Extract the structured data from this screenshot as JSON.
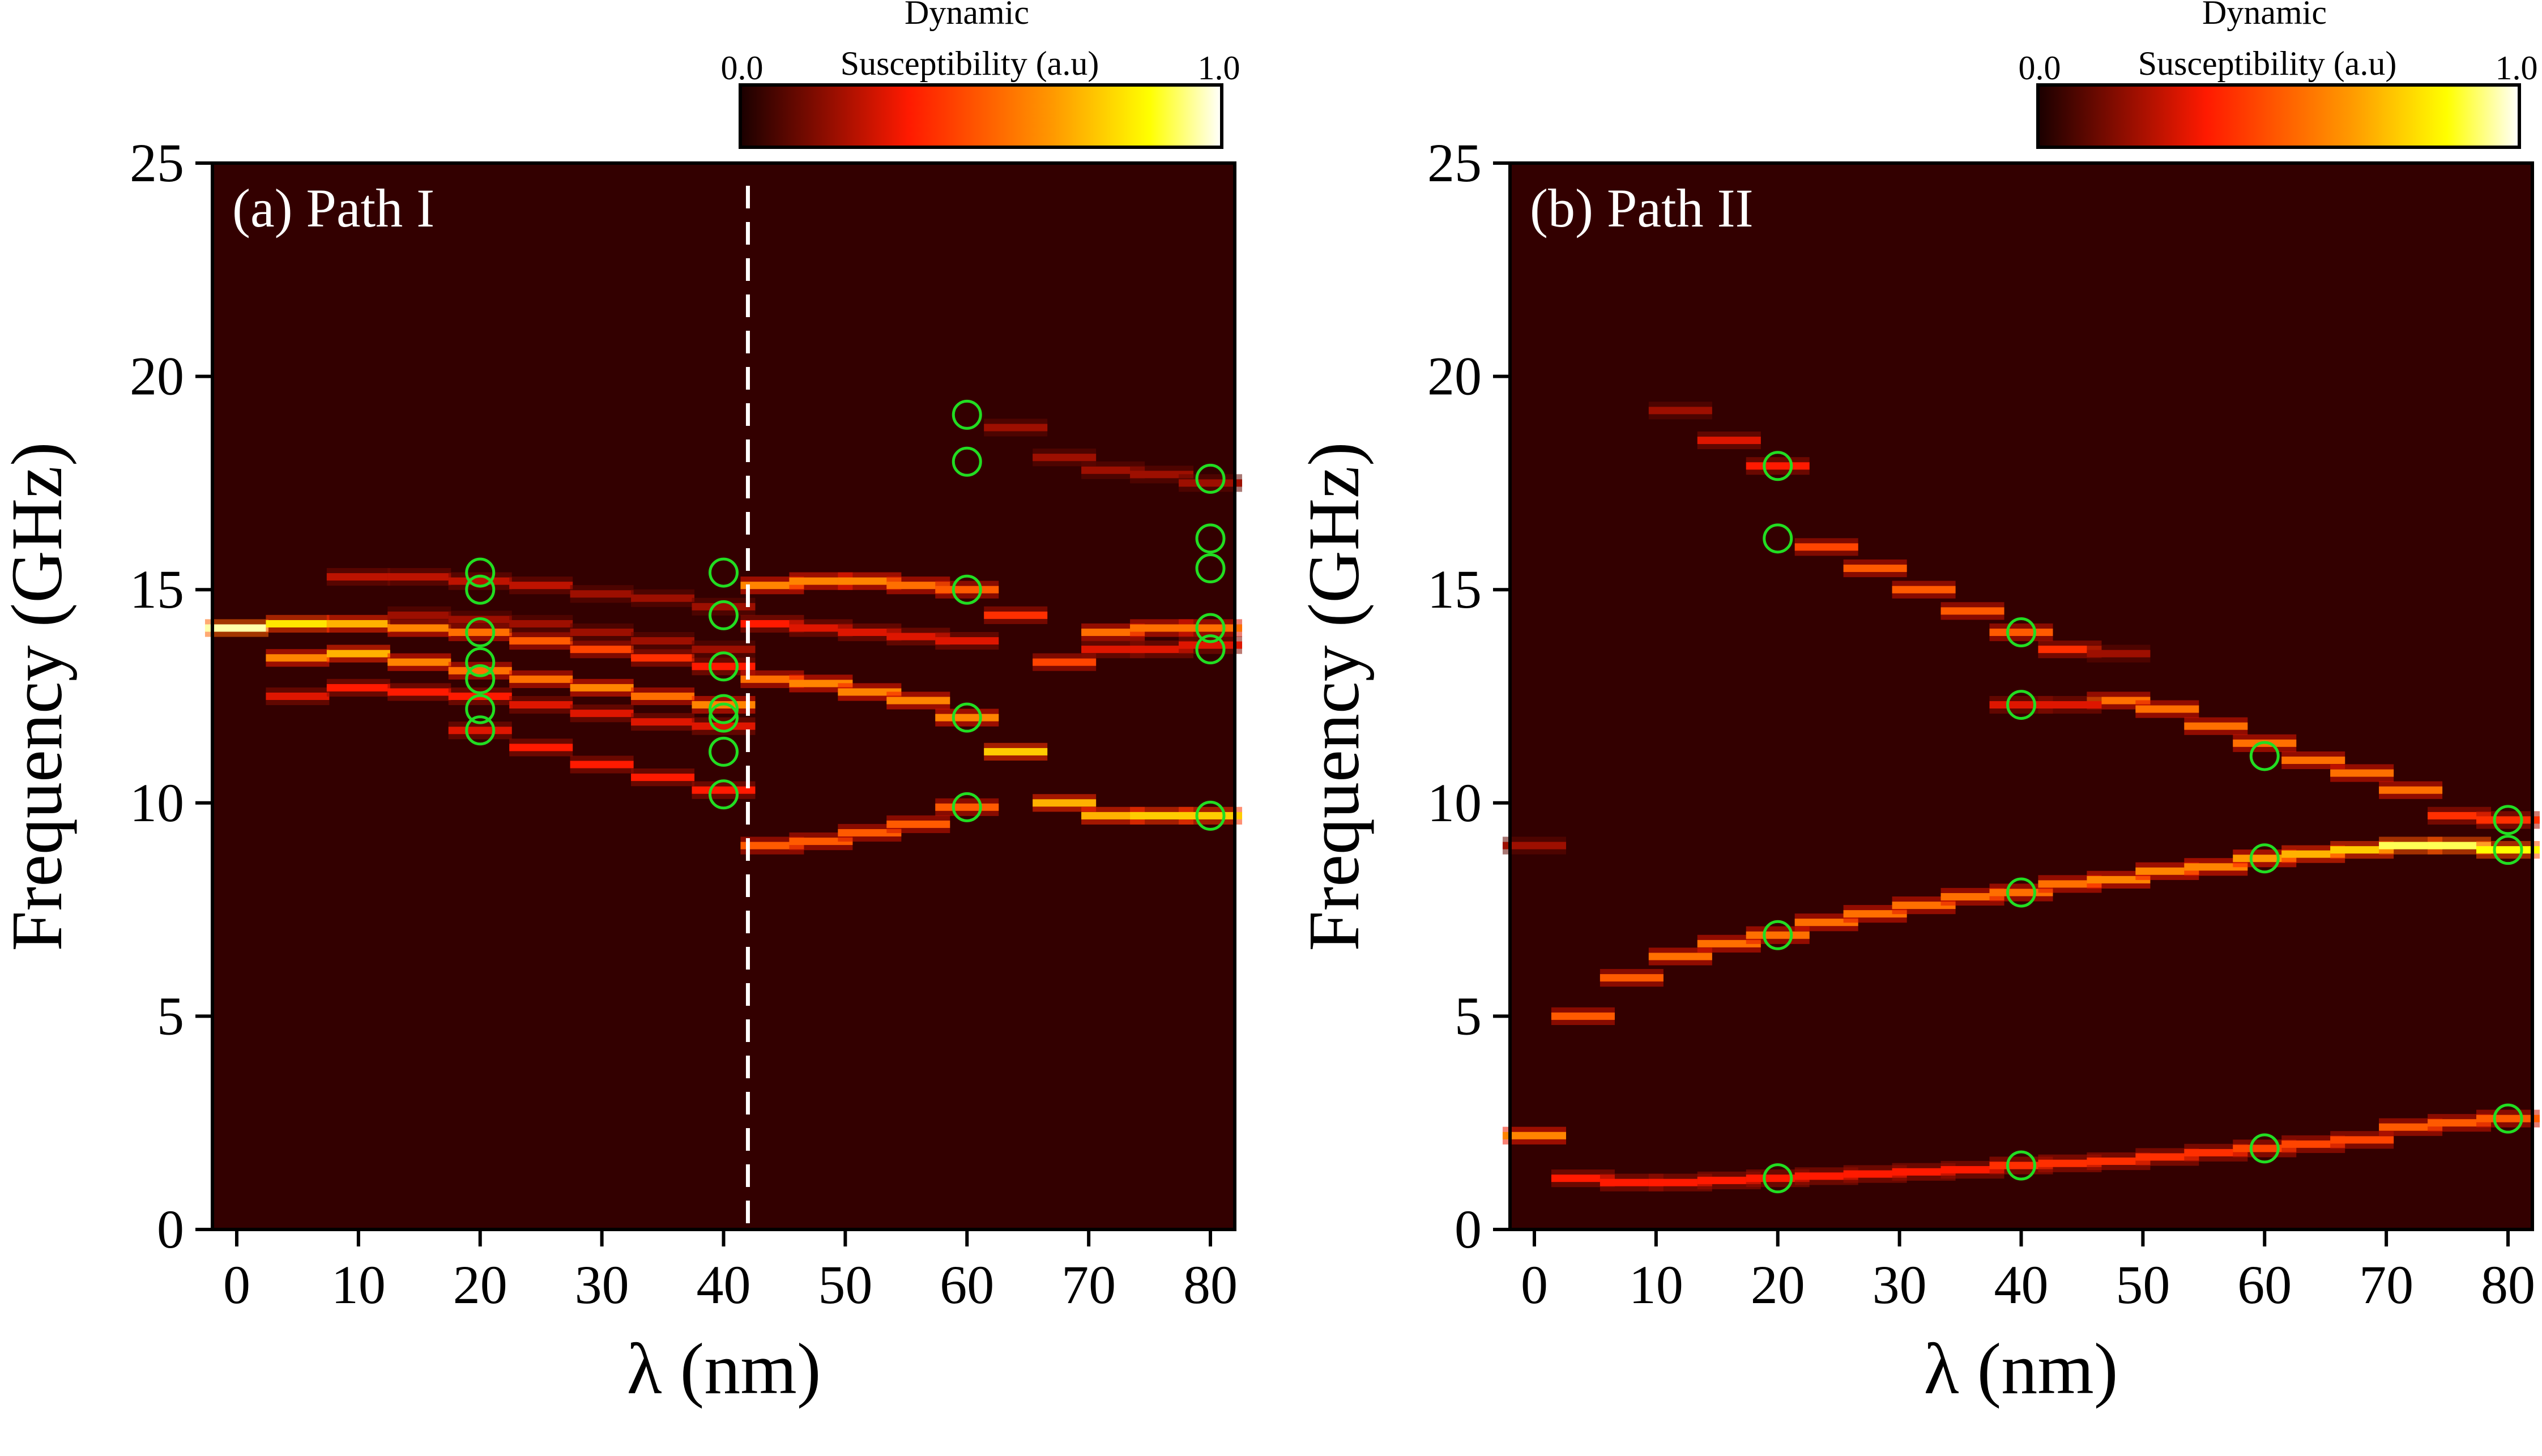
{
  "chart_data": [
    {
      "type": "heatmap",
      "title": "",
      "panel_label": "(a) Path I",
      "xlabel": "λ (nm)",
      "ylabel": "Frequency (GHz)",
      "xlim": [
        -2,
        82
      ],
      "ylim": [
        0,
        25
      ],
      "xticks": [
        0,
        10,
        20,
        30,
        40,
        50,
        60,
        70,
        80
      ],
      "yticks": [
        0,
        5,
        10,
        15,
        20,
        25
      ],
      "grid": false,
      "background_color": "#330000",
      "colorbar": {
        "title_line1": "Dynamic",
        "title_line2": "Susceptibility (a.u)",
        "min_label": "0.0",
        "max_label": "1.0",
        "colormap": "hot",
        "placement": "top-right"
      },
      "divider_x": 42,
      "modes": [
        {
          "x": [
            0,
            5,
            10,
            15,
            20,
            25,
            30,
            35,
            40
          ],
          "y": [
            14.1,
            14.2,
            14.2,
            14.1,
            14.0,
            13.8,
            13.6,
            13.4,
            13.2
          ],
          "intensity": [
            0.95,
            0.8,
            0.7,
            0.6,
            0.55,
            0.5,
            0.45,
            0.4,
            0.35
          ]
        },
        {
          "x": [
            5,
            10,
            15,
            20,
            25,
            30,
            35,
            40
          ],
          "y": [
            13.4,
            13.5,
            13.3,
            13.1,
            12.9,
            12.7,
            12.5,
            12.3
          ],
          "intensity": [
            0.6,
            0.7,
            0.6,
            0.55,
            0.55,
            0.6,
            0.55,
            0.6
          ]
        },
        {
          "x": [
            5,
            10,
            15,
            20,
            25,
            30,
            35,
            40
          ],
          "y": [
            12.5,
            12.7,
            12.6,
            12.5,
            12.3,
            12.1,
            11.9,
            11.8
          ],
          "intensity": [
            0.3,
            0.35,
            0.35,
            0.35,
            0.3,
            0.3,
            0.3,
            0.3
          ]
        },
        {
          "x": [
            10,
            15,
            20,
            25,
            30,
            35,
            40
          ],
          "y": [
            15.3,
            15.3,
            15.2,
            15.1,
            14.9,
            14.8,
            14.6
          ],
          "intensity": [
            0.25,
            0.25,
            0.25,
            0.25,
            0.2,
            0.2,
            0.2
          ]
        },
        {
          "x": [
            15,
            20,
            25,
            30,
            35,
            40
          ],
          "y": [
            14.4,
            14.3,
            14.2,
            14.0,
            13.8,
            13.6
          ],
          "intensity": [
            0.2,
            0.2,
            0.2,
            0.2,
            0.2,
            0.2
          ]
        },
        {
          "x": [
            20,
            25,
            30,
            35,
            40
          ],
          "y": [
            11.7,
            11.3,
            10.9,
            10.6,
            10.3
          ],
          "intensity": [
            0.3,
            0.35,
            0.35,
            0.35,
            0.35
          ]
        },
        {
          "x": [
            44,
            48,
            52,
            56,
            60
          ],
          "y": [
            15.1,
            15.2,
            15.2,
            15.1,
            15.0
          ],
          "intensity": [
            0.6,
            0.6,
            0.6,
            0.55,
            0.5
          ]
        },
        {
          "x": [
            44,
            48,
            52,
            56,
            60
          ],
          "y": [
            14.2,
            14.1,
            14.0,
            13.9,
            13.8
          ],
          "intensity": [
            0.35,
            0.3,
            0.3,
            0.3,
            0.3
          ]
        },
        {
          "x": [
            44,
            48,
            52,
            56,
            60
          ],
          "y": [
            12.9,
            12.8,
            12.6,
            12.4,
            12.0
          ],
          "intensity": [
            0.55,
            0.6,
            0.6,
            0.6,
            0.6
          ]
        },
        {
          "x": [
            44,
            48,
            52,
            56,
            60
          ],
          "y": [
            9.0,
            9.1,
            9.3,
            9.5,
            9.9
          ],
          "intensity": [
            0.5,
            0.5,
            0.5,
            0.5,
            0.5
          ]
        },
        {
          "x": [
            64,
            68,
            72,
            76,
            80
          ],
          "y": [
            18.8,
            18.1,
            17.8,
            17.7,
            17.5
          ],
          "intensity": [
            0.2,
            0.2,
            0.2,
            0.2,
            0.2
          ]
        },
        {
          "x": [
            64,
            68,
            72,
            76,
            80
          ],
          "y": [
            14.4,
            13.3,
            14.0,
            14.1,
            14.1
          ],
          "intensity": [
            0.4,
            0.45,
            0.55,
            0.55,
            0.55
          ]
        },
        {
          "x": [
            64,
            68,
            72,
            76,
            80
          ],
          "y": [
            11.2,
            10.0,
            9.7,
            9.7,
            9.7
          ],
          "intensity": [
            0.75,
            0.7,
            0.7,
            0.75,
            0.75
          ]
        },
        {
          "x": [
            72,
            76,
            80
          ],
          "y": [
            13.6,
            13.6,
            13.7
          ],
          "intensity": [
            0.3,
            0.3,
            0.3
          ]
        }
      ],
      "markers": [
        {
          "x": 20,
          "y": 15.4
        },
        {
          "x": 20,
          "y": 15.0
        },
        {
          "x": 20,
          "y": 14.0
        },
        {
          "x": 20,
          "y": 13.3
        },
        {
          "x": 20,
          "y": 12.9
        },
        {
          "x": 20,
          "y": 12.2
        },
        {
          "x": 20,
          "y": 11.7
        },
        {
          "x": 40,
          "y": 15.4
        },
        {
          "x": 40,
          "y": 14.4
        },
        {
          "x": 40,
          "y": 13.2
        },
        {
          "x": 40,
          "y": 12.2
        },
        {
          "x": 40,
          "y": 12.0
        },
        {
          "x": 40,
          "y": 11.2
        },
        {
          "x": 40,
          "y": 10.2
        },
        {
          "x": 60,
          "y": 19.1
        },
        {
          "x": 60,
          "y": 18.0
        },
        {
          "x": 60,
          "y": 15.0
        },
        {
          "x": 60,
          "y": 12.0
        },
        {
          "x": 60,
          "y": 9.9
        },
        {
          "x": 80,
          "y": 17.6
        },
        {
          "x": 80,
          "y": 16.2
        },
        {
          "x": 80,
          "y": 15.5
        },
        {
          "x": 80,
          "y": 14.1
        },
        {
          "x": 80,
          "y": 13.6
        },
        {
          "x": 80,
          "y": 9.7
        }
      ]
    },
    {
      "type": "heatmap",
      "title": "",
      "panel_label": "(b) Path II",
      "xlabel": "λ (nm)",
      "ylabel": "Frequency (GHz)",
      "xlim": [
        -2,
        82
      ],
      "ylim": [
        0,
        25
      ],
      "xticks": [
        0,
        10,
        20,
        30,
        40,
        50,
        60,
        70,
        80
      ],
      "yticks": [
        0,
        5,
        10,
        15,
        20,
        25
      ],
      "grid": false,
      "background_color": "#330000",
      "colorbar": {
        "title_line1": "Dynamic",
        "title_line2": "Susceptibility (a.u)",
        "min_label": "0.0",
        "max_label": "1.0",
        "colormap": "hot",
        "placement": "top-right"
      },
      "modes": [
        {
          "x": [
            0
          ],
          "y": [
            2.2
          ],
          "intensity": [
            0.6
          ]
        },
        {
          "x": [
            0
          ],
          "y": [
            9.0
          ],
          "intensity": [
            0.2
          ]
        },
        {
          "x": [
            4,
            8,
            12,
            16,
            20,
            24,
            28,
            32,
            36,
            40,
            44,
            48,
            52,
            56,
            60,
            64,
            68,
            72,
            76,
            80
          ],
          "y": [
            5.0,
            5.9,
            6.4,
            6.7,
            6.9,
            7.2,
            7.4,
            7.6,
            7.8,
            7.9,
            8.1,
            8.2,
            8.4,
            8.5,
            8.7,
            8.8,
            8.9,
            9.0,
            9.0,
            8.9
          ],
          "intensity": [
            0.5,
            0.5,
            0.55,
            0.55,
            0.55,
            0.55,
            0.55,
            0.55,
            0.55,
            0.55,
            0.55,
            0.6,
            0.6,
            0.6,
            0.65,
            0.7,
            0.75,
            0.9,
            0.9,
            0.85
          ]
        },
        {
          "x": [
            4,
            8,
            12,
            16,
            20,
            24,
            28,
            32,
            36,
            40,
            44,
            48,
            52,
            56,
            60,
            64,
            68,
            72,
            76,
            80
          ],
          "y": [
            1.2,
            1.1,
            1.1,
            1.15,
            1.2,
            1.25,
            1.3,
            1.35,
            1.4,
            1.5,
            1.55,
            1.6,
            1.7,
            1.8,
            1.9,
            2.0,
            2.1,
            2.4,
            2.5,
            2.6
          ],
          "intensity": [
            0.35,
            0.35,
            0.35,
            0.35,
            0.35,
            0.35,
            0.35,
            0.35,
            0.35,
            0.4,
            0.4,
            0.4,
            0.4,
            0.4,
            0.45,
            0.45,
            0.45,
            0.5,
            0.5,
            0.5
          ]
        },
        {
          "x": [
            12,
            16,
            20,
            24,
            28,
            32,
            36,
            40,
            44,
            48,
            52,
            56,
            60,
            64,
            68,
            72,
            76,
            80
          ],
          "y": [
            19.2,
            18.5,
            17.9,
            16.0,
            15.5,
            15.0,
            14.5,
            14.0,
            13.6,
            12.4,
            12.2,
            11.8,
            11.4,
            11.0,
            10.7,
            10.3,
            9.7,
            9.6
          ],
          "intensity": [
            0.2,
            0.3,
            0.35,
            0.45,
            0.5,
            0.5,
            0.5,
            0.5,
            0.4,
            0.55,
            0.55,
            0.55,
            0.55,
            0.55,
            0.55,
            0.55,
            0.4,
            0.4
          ]
        },
        {
          "x": [
            40,
            44,
            48
          ],
          "y": [
            12.3,
            12.3,
            13.5
          ],
          "intensity": [
            0.3,
            0.3,
            0.2
          ]
        }
      ],
      "markers": [
        {
          "x": 20,
          "y": 17.9
        },
        {
          "x": 20,
          "y": 16.2
        },
        {
          "x": 20,
          "y": 6.9
        },
        {
          "x": 20,
          "y": 1.2
        },
        {
          "x": 40,
          "y": 14.0
        },
        {
          "x": 40,
          "y": 12.3
        },
        {
          "x": 40,
          "y": 7.9
        },
        {
          "x": 40,
          "y": 1.5
        },
        {
          "x": 60,
          "y": 11.1
        },
        {
          "x": 60,
          "y": 8.7
        },
        {
          "x": 60,
          "y": 1.9
        },
        {
          "x": 80,
          "y": 9.6
        },
        {
          "x": 80,
          "y": 8.9
        },
        {
          "x": 80,
          "y": 2.6
        }
      ]
    }
  ]
}
